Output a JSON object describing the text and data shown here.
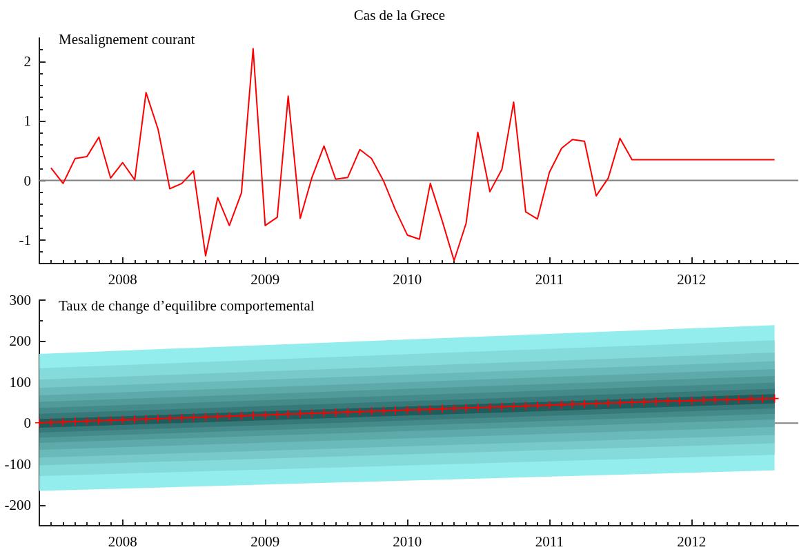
{
  "chart_data": [
    {
      "type": "line",
      "title": "Cas de la Grece",
      "subtitle": "Mesalignement courant",
      "x": [
        "2007-07",
        "2007-08",
        "2007-09",
        "2007-10",
        "2007-11",
        "2007-12",
        "2008-01",
        "2008-02",
        "2008-03",
        "2008-04",
        "2008-05",
        "2008-06",
        "2008-07",
        "2008-08",
        "2008-09",
        "2008-10",
        "2008-11",
        "2008-12",
        "2009-01",
        "2009-02",
        "2009-03",
        "2009-04",
        "2009-05",
        "2009-06",
        "2009-07",
        "2009-08",
        "2009-09",
        "2009-10",
        "2009-11",
        "2009-12",
        "2010-01",
        "2010-02",
        "2010-03",
        "2010-04",
        "2010-05",
        "2010-06",
        "2010-07",
        "2010-08",
        "2010-09",
        "2010-10",
        "2010-11",
        "2010-12",
        "2011-01",
        "2011-02",
        "2011-03",
        "2011-04",
        "2011-05",
        "2011-06",
        "2011-07",
        "2011-08",
        "2011-09",
        "2011-10",
        "2011-11",
        "2011-12",
        "2012-01",
        "2012-02",
        "2012-03",
        "2012-04",
        "2012-05",
        "2012-06",
        "2012-07",
        "2012-08"
      ],
      "series": [
        {
          "color": "#ff0000",
          "values": [
            0.21,
            -0.05,
            0.37,
            0.4,
            0.73,
            0.04,
            0.3,
            0.01,
            1.48,
            0.86,
            -0.14,
            -0.05,
            0.16,
            -1.27,
            -0.29,
            -0.76,
            -0.21,
            2.22,
            -0.76,
            -0.62,
            1.42,
            -0.64,
            0.05,
            0.58,
            0.02,
            0.05,
            0.52,
            0.37,
            -0.01,
            -0.49,
            -0.92,
            -0.99,
            -0.05,
            -0.69,
            -1.35,
            -0.72,
            0.81,
            -0.19,
            0.19,
            1.32,
            -0.53,
            -0.65,
            0.14,
            0.54,
            0.69,
            0.66,
            -0.26,
            0.04,
            0.71,
            0.35,
            0.35,
            0.35,
            0.35,
            0.35,
            0.35,
            0.35,
            0.35,
            0.35,
            0.35,
            0.35,
            0.35,
            0.35
          ]
        }
      ],
      "xlim": [
        "2007-06",
        "2012-10"
      ],
      "xticks": [
        {
          "value": "2007-07",
          "label": null
        },
        {
          "value": "2007-08",
          "label": null
        },
        {
          "value": "2007-09",
          "label": null
        },
        {
          "value": "2007-10",
          "label": null
        },
        {
          "value": "2007-11",
          "label": null
        },
        {
          "value": "2007-12",
          "label": null
        },
        "2008",
        {
          "value": "2008-02",
          "label": null
        },
        {
          "value": "2008-03",
          "label": null
        },
        {
          "value": "2008-04",
          "label": null
        },
        {
          "value": "2008-05",
          "label": null
        },
        {
          "value": "2008-06",
          "label": null
        },
        {
          "value": "2008-07",
          "label": null
        },
        {
          "value": "2008-08",
          "label": null
        },
        {
          "value": "2008-09",
          "label": null
        },
        {
          "value": "2008-10",
          "label": null
        },
        {
          "value": "2008-11",
          "label": null
        },
        {
          "value": "2008-12",
          "label": null
        },
        "2009",
        {
          "value": "2009-02",
          "label": null
        },
        {
          "value": "2009-03",
          "label": null
        },
        {
          "value": "2009-04",
          "label": null
        },
        {
          "value": "2009-05",
          "label": null
        },
        {
          "value": "2009-06",
          "label": null
        },
        {
          "value": "2009-07",
          "label": null
        },
        {
          "value": "2009-08",
          "label": null
        },
        {
          "value": "2009-09",
          "label": null
        },
        {
          "value": "2009-10",
          "label": null
        },
        {
          "value": "2009-11",
          "label": null
        },
        {
          "value": "2009-12",
          "label": null
        },
        "2010",
        {
          "value": "2010-02",
          "label": null
        },
        {
          "value": "2010-03",
          "label": null
        },
        {
          "value": "2010-04",
          "label": null
        },
        {
          "value": "2010-05",
          "label": null
        },
        {
          "value": "2010-06",
          "label": null
        },
        {
          "value": "2010-07",
          "label": null
        },
        {
          "value": "2010-08",
          "label": null
        },
        {
          "value": "2010-09",
          "label": null
        },
        {
          "value": "2010-10",
          "label": null
        },
        {
          "value": "2010-11",
          "label": null
        },
        {
          "value": "2010-12",
          "label": null
        },
        "2011",
        {
          "value": "2011-02",
          "label": null
        },
        {
          "value": "2011-03",
          "label": null
        },
        {
          "value": "2011-04",
          "label": null
        },
        {
          "value": "2011-05",
          "label": null
        },
        {
          "value": "2011-06",
          "label": null
        },
        {
          "value": "2011-07",
          "label": null
        },
        {
          "value": "2011-08",
          "label": null
        },
        {
          "value": "2011-09",
          "label": null
        },
        {
          "value": "2011-10",
          "label": null
        },
        {
          "value": "2011-11",
          "label": null
        },
        {
          "value": "2011-12",
          "label": null
        },
        "2012",
        {
          "value": "2012-02",
          "label": null
        },
        {
          "value": "2012-03",
          "label": null
        },
        {
          "value": "2012-04",
          "label": null
        },
        {
          "value": "2012-05",
          "label": null
        },
        {
          "value": "2012-06",
          "label": null
        },
        {
          "value": "2012-07",
          "label": null
        },
        {
          "value": "2012-08",
          "label": null
        },
        {
          "value": "2012-09",
          "label": null
        }
      ],
      "ylim": [
        -1.4,
        2.4
      ],
      "yticks": [
        {
          "value": -1.2,
          "label": null
        },
        -1,
        {
          "value": -0.8,
          "label": null
        },
        {
          "value": -0.6,
          "label": null
        },
        {
          "value": -0.4,
          "label": null
        },
        {
          "value": -0.2,
          "label": null
        },
        0,
        {
          "value": 0.2,
          "label": null
        },
        {
          "value": 0.4,
          "label": null
        },
        {
          "value": 0.6,
          "label": null
        },
        {
          "value": 0.8,
          "label": null
        },
        1,
        {
          "value": 1.2,
          "label": null
        },
        {
          "value": 1.4,
          "label": null
        },
        {
          "value": 1.6,
          "label": null
        },
        {
          "value": 1.8,
          "label": null
        },
        2,
        {
          "value": 2.2,
          "label": null
        }
      ],
      "ref_lines": [
        {
          "axis": "y",
          "value": 0,
          "color": "#808080"
        }
      ],
      "marker": "none"
    },
    {
      "type": "line",
      "title": "Taux de change d’equilibre comportemental",
      "series": [
        {
          "type": "area",
          "color": "#93eded",
          "x": [
            "2007-06",
            "2012-08"
          ],
          "values": [
            null,
            null
          ],
          "lower": [
            -165,
            -115
          ],
          "upper": [
            169,
            239
          ]
        },
        {
          "type": "area",
          "color": "#85dada",
          "x": [
            "2007-06",
            "2012-08"
          ],
          "values": [
            null,
            null
          ],
          "lower": [
            -129,
            -77
          ],
          "upper": [
            134,
            202
          ]
        },
        {
          "type": "area",
          "color": "#78caca",
          "x": [
            "2007-06",
            "2012-08"
          ],
          "values": [
            null,
            null
          ],
          "lower": [
            -103,
            -49
          ],
          "upper": [
            106,
            172
          ]
        },
        {
          "type": "area",
          "color": "#6bbaba",
          "x": [
            "2007-06",
            "2012-08"
          ],
          "values": [
            null,
            null
          ],
          "lower": [
            -84,
            -29
          ],
          "upper": [
            86,
            151
          ]
        },
        {
          "type": "area",
          "color": "#5eaaaa",
          "x": [
            "2007-06",
            "2012-08"
          ],
          "values": [
            null,
            null
          ],
          "lower": [
            -65,
            -9
          ],
          "upper": [
            68,
            132
          ]
        },
        {
          "type": "area",
          "color": "#519a9a",
          "x": [
            "2007-06",
            "2012-08"
          ],
          "values": [
            null,
            null
          ],
          "lower": [
            -48,
            9
          ],
          "upper": [
            52,
            115
          ]
        },
        {
          "type": "area",
          "color": "#448a8a",
          "x": [
            "2007-06",
            "2012-08"
          ],
          "values": [
            null,
            null
          ],
          "lower": [
            -35,
            23
          ],
          "upper": [
            37,
            99
          ]
        },
        {
          "type": "area",
          "color": "#377979",
          "x": [
            "2007-06",
            "2012-08"
          ],
          "values": [
            null,
            null
          ],
          "lower": [
            -23,
            36
          ],
          "upper": [
            23,
            84
          ]
        },
        {
          "type": "area",
          "color": "#1f5c5c",
          "x": [
            "2007-06",
            "2012-08"
          ],
          "values": [
            null,
            null
          ],
          "lower": [
            -11,
            48
          ],
          "upper": [
            10,
            71
          ]
        },
        {
          "color": "#ff0000",
          "x": [
            "2007-06",
            "2007-07",
            "2007-08",
            "2007-09",
            "2007-10",
            "2007-11",
            "2007-12",
            "2008-01",
            "2008-02",
            "2008-03",
            "2008-04",
            "2008-05",
            "2008-06",
            "2008-07",
            "2008-08",
            "2008-09",
            "2008-10",
            "2008-11",
            "2008-12",
            "2009-01",
            "2009-02",
            "2009-03",
            "2009-04",
            "2009-05",
            "2009-06",
            "2009-07",
            "2009-08",
            "2009-09",
            "2009-10",
            "2009-11",
            "2009-12",
            "2010-01",
            "2010-02",
            "2010-03",
            "2010-04",
            "2010-05",
            "2010-06",
            "2010-07",
            "2010-08",
            "2010-09",
            "2010-10",
            "2010-11",
            "2010-12",
            "2011-01",
            "2011-02",
            "2011-03",
            "2011-04",
            "2011-05",
            "2011-06",
            "2011-07",
            "2011-08",
            "2011-09",
            "2011-10",
            "2011-11",
            "2011-12",
            "2012-01",
            "2012-02",
            "2012-03",
            "2012-04",
            "2012-05",
            "2012-06",
            "2012-07",
            "2012-08"
          ],
          "values": [
            1,
            2,
            3,
            4,
            5,
            6,
            7,
            8,
            9,
            10,
            11,
            12,
            13,
            14,
            15,
            16,
            17,
            18,
            19,
            20,
            21,
            22,
            23,
            24,
            25,
            26,
            27,
            28,
            29,
            30,
            31,
            32,
            33,
            34,
            35,
            36,
            37,
            38,
            39,
            40,
            41,
            42,
            43,
            44,
            45,
            46,
            47,
            48,
            49,
            50,
            51,
            52,
            53,
            54,
            54,
            55,
            56,
            57,
            57,
            58,
            59,
            59,
            60
          ]
        }
      ],
      "xlim": [
        "2007-06",
        "2012-10"
      ],
      "xticks": [
        {
          "value": "2007-07",
          "label": null
        },
        {
          "value": "2007-08",
          "label": null
        },
        {
          "value": "2007-09",
          "label": null
        },
        {
          "value": "2007-10",
          "label": null
        },
        {
          "value": "2007-11",
          "label": null
        },
        {
          "value": "2007-12",
          "label": null
        },
        "2008",
        {
          "value": "2008-02",
          "label": null
        },
        {
          "value": "2008-03",
          "label": null
        },
        {
          "value": "2008-04",
          "label": null
        },
        {
          "value": "2008-05",
          "label": null
        },
        {
          "value": "2008-06",
          "label": null
        },
        {
          "value": "2008-07",
          "label": null
        },
        {
          "value": "2008-08",
          "label": null
        },
        {
          "value": "2008-09",
          "label": null
        },
        {
          "value": "2008-10",
          "label": null
        },
        {
          "value": "2008-11",
          "label": null
        },
        {
          "value": "2008-12",
          "label": null
        },
        "2009",
        {
          "value": "2009-02",
          "label": null
        },
        {
          "value": "2009-03",
          "label": null
        },
        {
          "value": "2009-04",
          "label": null
        },
        {
          "value": "2009-05",
          "label": null
        },
        {
          "value": "2009-06",
          "label": null
        },
        {
          "value": "2009-07",
          "label": null
        },
        {
          "value": "2009-08",
          "label": null
        },
        {
          "value": "2009-09",
          "label": null
        },
        {
          "value": "2009-10",
          "label": null
        },
        {
          "value": "2009-11",
          "label": null
        },
        {
          "value": "2009-12",
          "label": null
        },
        "2010",
        {
          "value": "2010-02",
          "label": null
        },
        {
          "value": "2010-03",
          "label": null
        },
        {
          "value": "2010-04",
          "label": null
        },
        {
          "value": "2010-05",
          "label": null
        },
        {
          "value": "2010-06",
          "label": null
        },
        {
          "value": "2010-07",
          "label": null
        },
        {
          "value": "2010-08",
          "label": null
        },
        {
          "value": "2010-09",
          "label": null
        },
        {
          "value": "2010-10",
          "label": null
        },
        {
          "value": "2010-11",
          "label": null
        },
        {
          "value": "2010-12",
          "label": null
        },
        "2011",
        {
          "value": "2011-02",
          "label": null
        },
        {
          "value": "2011-03",
          "label": null
        },
        {
          "value": "2011-04",
          "label": null
        },
        {
          "value": "2011-05",
          "label": null
        },
        {
          "value": "2011-06",
          "label": null
        },
        {
          "value": "2011-07",
          "label": null
        },
        {
          "value": "2011-08",
          "label": null
        },
        {
          "value": "2011-09",
          "label": null
        },
        {
          "value": "2011-10",
          "label": null
        },
        {
          "value": "2011-11",
          "label": null
        },
        {
          "value": "2011-12",
          "label": null
        },
        "2012",
        {
          "value": "2012-02",
          "label": null
        },
        {
          "value": "2012-03",
          "label": null
        },
        {
          "value": "2012-04",
          "label": null
        },
        {
          "value": "2012-05",
          "label": null
        },
        {
          "value": "2012-06",
          "label": null
        },
        {
          "value": "2012-07",
          "label": null
        },
        {
          "value": "2012-08",
          "label": null
        },
        {
          "value": "2012-09",
          "label": null
        }
      ],
      "ylim": [
        -250,
        300
      ],
      "yticks": [
        -200,
        {
          "value": -150,
          "label": null
        },
        -100,
        {
          "value": -50,
          "label": null
        },
        0,
        {
          "value": 50,
          "label": null
        },
        100,
        {
          "value": 150,
          "label": null
        },
        200,
        {
          "value": 250,
          "label": null
        },
        300
      ],
      "ref_lines": [
        {
          "axis": "y",
          "value": 0,
          "color": "#808080"
        }
      ],
      "marker": "cross"
    }
  ]
}
